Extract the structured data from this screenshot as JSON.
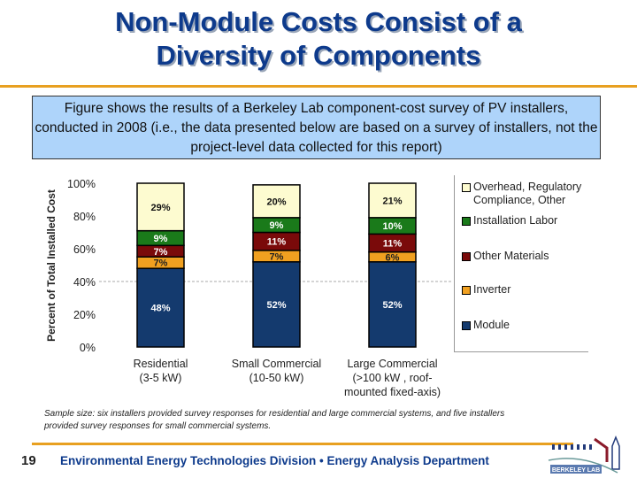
{
  "slide": {
    "title_line1": "Non-Module Costs Consist of a",
    "title_line2": "Diversity of Components",
    "description": "Figure shows the results of a Berkeley Lab component-cost survey of PV installers, conducted in 2008 (i.e., the data presented below are based on a survey of installers, not the project-level data collected for this report)",
    "note_line1": "Sample size: six installers provided survey responses for residential and large commercial systems, and five installers",
    "note_line2": "provided survey responses for small commercial systems.",
    "page_number": "19",
    "footer": "Environmental Energy Technologies Division  •  Energy Analysis Department",
    "logo_text": "BERKELEY LAB",
    "accent_color": "#e8a020",
    "title_color": "#0d3a8c"
  },
  "chart_data": {
    "type": "bar",
    "stacked": true,
    "ylabel": "Percent of Total Installed Cost",
    "ylim": [
      0,
      100
    ],
    "yticks": [
      "0%",
      "20%",
      "40%",
      "60%",
      "80%",
      "100%"
    ],
    "grid": "dashed line at 40%",
    "legend_placement": "right",
    "categories": [
      [
        "Residential",
        "(3-5 kW)"
      ],
      [
        "Small Commercial",
        "(10-50 kW)"
      ],
      [
        "Large Commercial",
        "(>100 kW , roof-",
        "mounted fixed-axis)"
      ]
    ],
    "series": [
      {
        "name": "Module",
        "color": "#143a6e",
        "label_color": "#ffffff",
        "values": [
          48,
          52,
          52
        ],
        "labels": [
          "48%",
          "52%",
          "52%"
        ]
      },
      {
        "name": "Inverter",
        "color": "#f0a020",
        "label_color": "#222222",
        "values": [
          7,
          7,
          6
        ],
        "labels": [
          "7%",
          "7%",
          "6%"
        ]
      },
      {
        "name": "Other Materials",
        "color": "#7a0a0a",
        "label_color": "#ffffff",
        "values": [
          7,
          11,
          11
        ],
        "labels": [
          "7%",
          "11%",
          "11%"
        ]
      },
      {
        "name": "Installation Labor",
        "color": "#1a7a1a",
        "label_color": "#ffffff",
        "values": [
          9,
          9,
          10
        ],
        "labels": [
          "9%",
          "9%",
          "10%"
        ]
      },
      {
        "name": "Overhead, Regulatory Compliance, Other",
        "color": "#fdfbd0",
        "label_color": "#111111",
        "values": [
          29,
          20,
          21
        ],
        "labels": [
          "29%",
          "20%",
          "21%"
        ]
      }
    ],
    "legend_order": [
      "Overhead, Regulatory Compliance, Other",
      "Installation Labor",
      "Other Materials",
      "Inverter",
      "Module"
    ]
  }
}
